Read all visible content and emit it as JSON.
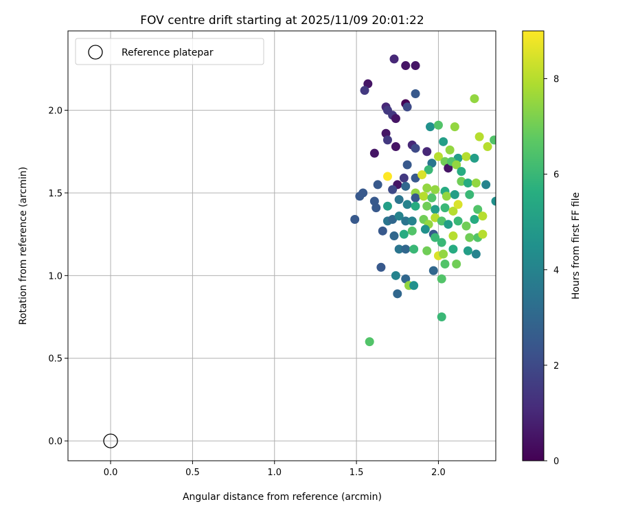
{
  "chart_data": {
    "type": "scatter",
    "title": "FOV centre drift starting at 2025/11/09 20:01:22",
    "xlabel": "Angular distance from reference (arcmin)",
    "ylabel": "Rotation from reference (arcmin)",
    "colorbar_label": "Hours from first FF file",
    "colormap": "viridis",
    "xlim": [
      -0.26,
      2.35
    ],
    "ylim": [
      -0.12,
      2.48
    ],
    "color_range": [
      0,
      9
    ],
    "x_ticks": [
      0.0,
      0.5,
      1.0,
      1.5,
      2.0
    ],
    "x_tick_labels": [
      "0.0",
      "0.5",
      "1.0",
      "1.5",
      "2.0"
    ],
    "y_ticks": [
      0.0,
      0.5,
      1.0,
      1.5,
      2.0
    ],
    "y_tick_labels": [
      "0.0",
      "0.5",
      "1.0",
      "1.5",
      "2.0"
    ],
    "colorbar_ticks": [
      0,
      2,
      4,
      6,
      8
    ],
    "colorbar_tick_labels": [
      "0",
      "2",
      "4",
      "6",
      "8"
    ],
    "grid": true,
    "legend": {
      "position": "top-left",
      "entries": [
        {
          "label": "Reference platepar",
          "marker": "open-circle"
        }
      ]
    },
    "reference_point": {
      "x": 0.0,
      "y": 0.0
    },
    "points": [
      [
        1.73,
        2.31,
        1.0
      ],
      [
        1.8,
        2.27,
        0.5
      ],
      [
        1.86,
        2.27,
        0.5
      ],
      [
        1.57,
        2.16,
        0.5
      ],
      [
        1.55,
        2.12,
        1.5
      ],
      [
        1.86,
        2.1,
        2.5
      ],
      [
        1.8,
        2.04,
        0.0
      ],
      [
        1.68,
        2.02,
        1.0
      ],
      [
        1.69,
        2.0,
        1.5
      ],
      [
        1.81,
        2.02,
        2.0
      ],
      [
        1.72,
        1.97,
        1.5
      ],
      [
        1.74,
        1.95,
        0.5
      ],
      [
        1.68,
        1.86,
        0.5
      ],
      [
        1.69,
        1.82,
        1.5
      ],
      [
        1.74,
        1.78,
        0.5
      ],
      [
        1.84,
        1.79,
        1.0
      ],
      [
        1.61,
        1.74,
        0.5
      ],
      [
        1.86,
        1.77,
        2.0
      ],
      [
        1.81,
        1.67,
        2.5
      ],
      [
        1.93,
        1.75,
        1.0
      ],
      [
        1.95,
        1.9,
        4.5
      ],
      [
        2.0,
        1.91,
        6.5
      ],
      [
        2.03,
        1.81,
        5.0
      ],
      [
        2.1,
        1.9,
        7.5
      ],
      [
        2.22,
        2.07,
        7.5
      ],
      [
        2.25,
        1.84,
        8.0
      ],
      [
        2.3,
        1.78,
        8.0
      ],
      [
        2.34,
        1.82,
        6.5
      ],
      [
        2.0,
        1.72,
        8.0
      ],
      [
        2.04,
        1.69,
        7.0
      ],
      [
        2.07,
        1.76,
        7.5
      ],
      [
        2.12,
        1.71,
        5.0
      ],
      [
        2.17,
        1.72,
        8.0
      ],
      [
        2.22,
        1.71,
        5.0
      ],
      [
        1.96,
        1.68,
        3.5
      ],
      [
        1.94,
        1.64,
        6.0
      ],
      [
        2.06,
        1.65,
        0.5
      ],
      [
        2.08,
        1.69,
        6.5
      ],
      [
        2.11,
        1.67,
        7.5
      ],
      [
        2.14,
        1.63,
        5.5
      ],
      [
        1.69,
        1.6,
        9.0
      ],
      [
        1.79,
        1.59,
        1.5
      ],
      [
        1.86,
        1.59,
        2.5
      ],
      [
        1.9,
        1.61,
        8.5
      ],
      [
        1.63,
        1.55,
        2.5
      ],
      [
        1.75,
        1.55,
        0.5
      ],
      [
        1.8,
        1.54,
        3.0
      ],
      [
        1.93,
        1.53,
        7.5
      ],
      [
        1.98,
        1.52,
        7.5
      ],
      [
        2.04,
        1.51,
        5.5
      ],
      [
        2.14,
        1.57,
        7.0
      ],
      [
        2.18,
        1.56,
        5.5
      ],
      [
        2.23,
        1.56,
        7.5
      ],
      [
        2.29,
        1.55,
        4.0
      ],
      [
        2.19,
        1.49,
        6.0
      ],
      [
        1.52,
        1.48,
        2.5
      ],
      [
        1.54,
        1.5,
        2.5
      ],
      [
        1.72,
        1.52,
        2.0
      ],
      [
        1.86,
        1.5,
        7.5
      ],
      [
        1.86,
        1.47,
        2.5
      ],
      [
        1.91,
        1.48,
        8.0
      ],
      [
        1.96,
        1.47,
        6.5
      ],
      [
        2.05,
        1.48,
        7.5
      ],
      [
        2.1,
        1.49,
        5.0
      ],
      [
        2.35,
        1.45,
        4.5
      ],
      [
        1.61,
        1.45,
        2.5
      ],
      [
        1.62,
        1.41,
        2.5
      ],
      [
        1.69,
        1.42,
        5.0
      ],
      [
        1.76,
        1.46,
        3.5
      ],
      [
        1.81,
        1.43,
        4.0
      ],
      [
        1.86,
        1.42,
        5.5
      ],
      [
        1.93,
        1.42,
        7.0
      ],
      [
        1.98,
        1.4,
        5.0
      ],
      [
        2.04,
        1.41,
        6.0
      ],
      [
        2.09,
        1.39,
        8.0
      ],
      [
        2.12,
        1.43,
        8.5
      ],
      [
        2.24,
        1.4,
        6.5
      ],
      [
        1.49,
        1.34,
        2.5
      ],
      [
        1.69,
        1.33,
        3.5
      ],
      [
        1.72,
        1.34,
        3.0
      ],
      [
        1.76,
        1.36,
        4.0
      ],
      [
        1.8,
        1.33,
        3.5
      ],
      [
        1.84,
        1.33,
        4.0
      ],
      [
        1.91,
        1.34,
        7.0
      ],
      [
        1.94,
        1.31,
        7.5
      ],
      [
        1.98,
        1.35,
        8.0
      ],
      [
        2.02,
        1.33,
        6.5
      ],
      [
        2.06,
        1.31,
        5.0
      ],
      [
        2.12,
        1.33,
        6.0
      ],
      [
        2.17,
        1.3,
        7.0
      ],
      [
        2.22,
        1.34,
        5.5
      ],
      [
        2.27,
        1.36,
        8.0
      ],
      [
        1.66,
        1.27,
        2.5
      ],
      [
        1.73,
        1.24,
        3.0
      ],
      [
        1.79,
        1.25,
        5.5
      ],
      [
        1.84,
        1.27,
        6.5
      ],
      [
        1.92,
        1.28,
        4.5
      ],
      [
        1.97,
        1.25,
        2.5
      ],
      [
        1.98,
        1.23,
        6.0
      ],
      [
        2.02,
        1.2,
        6.0
      ],
      [
        2.09,
        1.24,
        8.0
      ],
      [
        2.19,
        1.23,
        7.0
      ],
      [
        2.24,
        1.23,
        6.5
      ],
      [
        2.27,
        1.25,
        8.0
      ],
      [
        1.76,
        1.16,
        3.5
      ],
      [
        1.8,
        1.16,
        3.0
      ],
      [
        1.85,
        1.16,
        6.0
      ],
      [
        1.93,
        1.15,
        7.0
      ],
      [
        2.0,
        1.12,
        8.5
      ],
      [
        2.03,
        1.13,
        7.5
      ],
      [
        2.09,
        1.16,
        5.5
      ],
      [
        2.18,
        1.15,
        5.0
      ],
      [
        2.23,
        1.13,
        4.0
      ],
      [
        1.97,
        1.03,
        3.0
      ],
      [
        2.04,
        1.07,
        6.5
      ],
      [
        2.11,
        1.07,
        7.0
      ],
      [
        1.65,
        1.05,
        2.5
      ],
      [
        1.74,
        1.0,
        4.0
      ],
      [
        1.8,
        0.98,
        3.0
      ],
      [
        1.82,
        0.94,
        7.5
      ],
      [
        1.85,
        0.94,
        4.5
      ],
      [
        2.02,
        0.98,
        6.5
      ],
      [
        1.75,
        0.89,
        3.0
      ],
      [
        2.02,
        0.75,
        6.0
      ],
      [
        1.58,
        0.6,
        6.5
      ]
    ]
  }
}
